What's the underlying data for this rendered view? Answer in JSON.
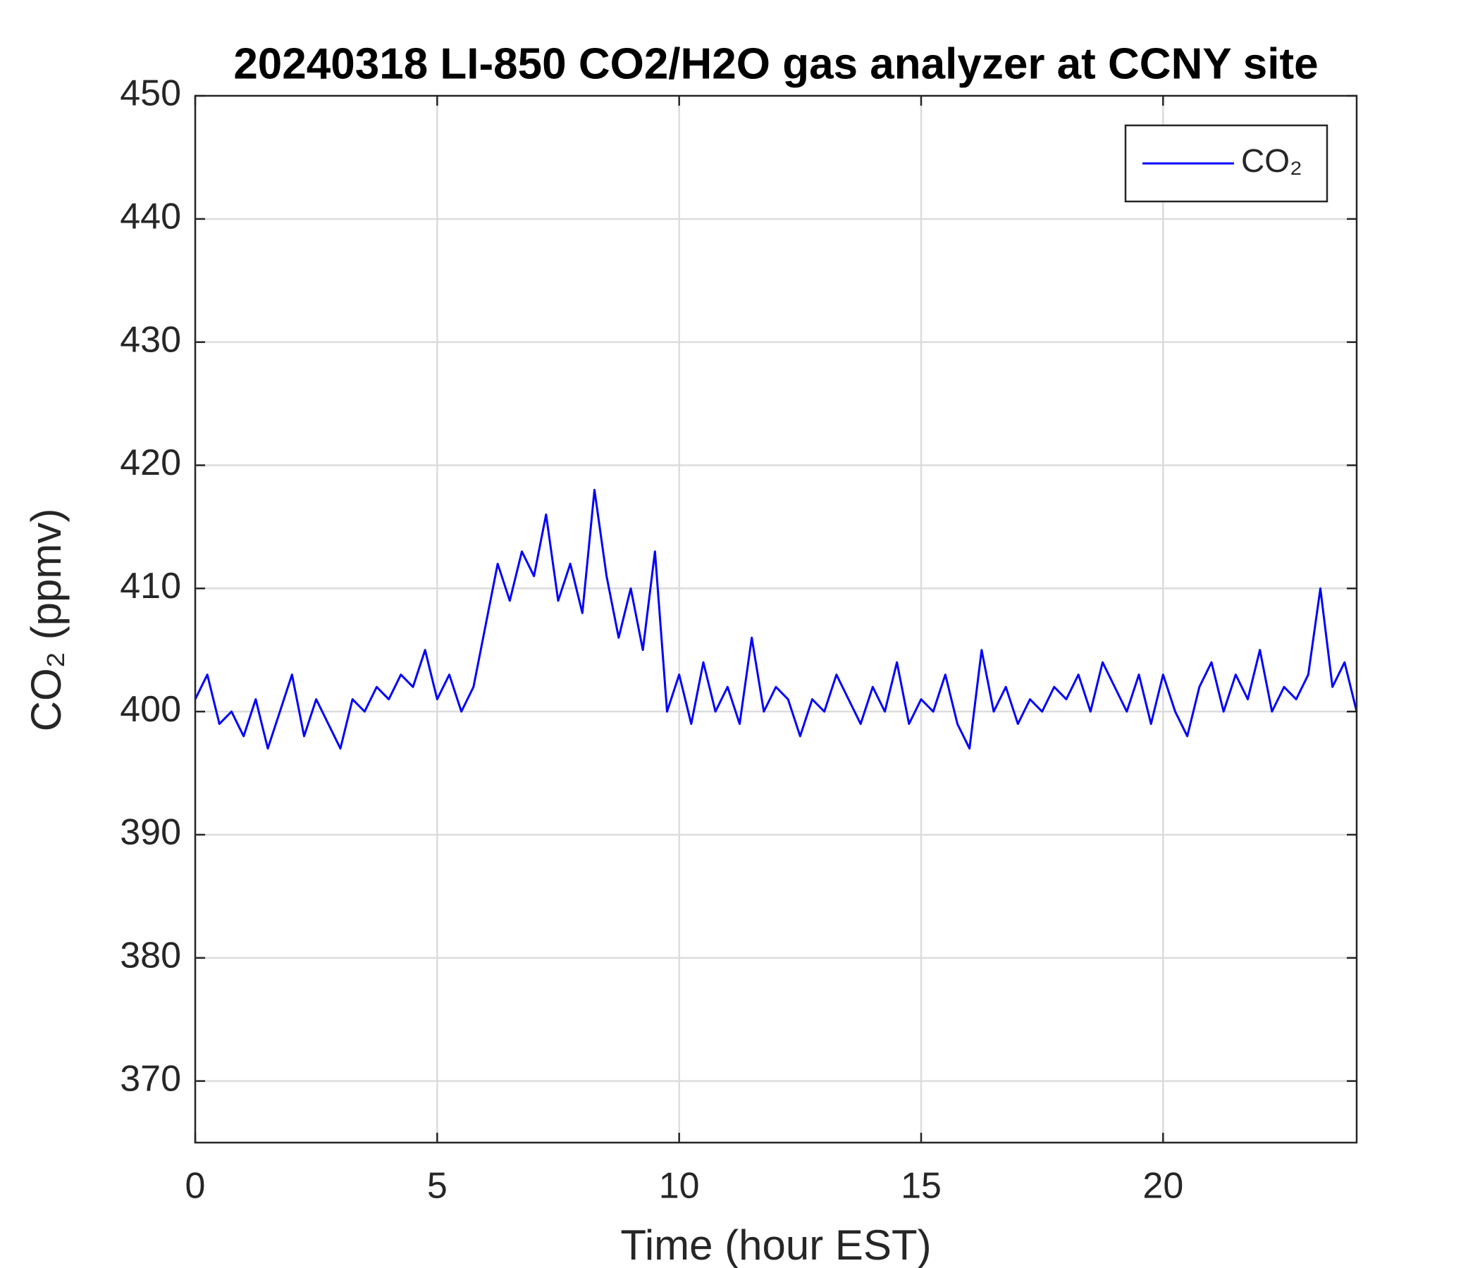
{
  "chart_data": {
    "type": "line",
    "title": "20240318 LI-850 CO2/H2O gas analyzer at CCNY site",
    "x_label": "Time (hour EST)",
    "y_label": "CO₂ (ppmv)",
    "xlim": [
      0,
      24
    ],
    "xticks": [
      0,
      5,
      10,
      15,
      20
    ],
    "ylim": [
      365,
      450
    ],
    "yticks": [
      370,
      380,
      390,
      400,
      410,
      420,
      430,
      440,
      450
    ],
    "grid": true,
    "legend": "upper right",
    "x": [
      0,
      0.25,
      0.5,
      0.75,
      1,
      1.25,
      1.5,
      1.75,
      2,
      2.25,
      2.5,
      2.75,
      3,
      3.25,
      3.5,
      3.75,
      4,
      4.25,
      4.5,
      4.75,
      5,
      5.25,
      5.5,
      5.75,
      6,
      6.25,
      6.5,
      6.75,
      7,
      7.25,
      7.5,
      7.75,
      8,
      8.25,
      8.5,
      8.75,
      9,
      9.25,
      9.5,
      9.75,
      10,
      10.25,
      10.5,
      10.75,
      11,
      11.25,
      11.5,
      11.75,
      12,
      12.25,
      12.5,
      12.75,
      13,
      13.25,
      13.5,
      13.75,
      14,
      14.25,
      14.5,
      14.75,
      15,
      15.25,
      15.5,
      15.75,
      16,
      16.25,
      16.5,
      16.75,
      17,
      17.25,
      17.5,
      17.75,
      18,
      18.25,
      18.5,
      18.75,
      19,
      19.25,
      19.5,
      19.75,
      20,
      20.25,
      20.5,
      20.75,
      21,
      21.25,
      21.5,
      21.75,
      22,
      22.25,
      22.5,
      22.75,
      23,
      23.25,
      23.5,
      23.75,
      24
    ],
    "series": [
      {
        "name": "CO₂",
        "color": "#0000ff",
        "values": [
          401,
          403,
          399,
          400,
          398,
          401,
          397,
          400,
          403,
          398,
          401,
          399,
          397,
          401,
          400,
          402,
          401,
          403,
          402,
          405,
          401,
          403,
          400,
          402,
          407,
          412,
          409,
          413,
          411,
          416,
          409,
          412,
          408,
          418,
          411,
          406,
          410,
          405,
          413,
          400,
          403,
          399,
          404,
          400,
          402,
          399,
          406,
          400,
          402,
          401,
          398,
          401,
          400,
          403,
          401,
          399,
          402,
          400,
          404,
          399,
          401,
          400,
          403,
          399,
          397,
          405,
          400,
          402,
          399,
          401,
          400,
          402,
          401,
          403,
          400,
          404,
          402,
          400,
          403,
          399,
          403,
          400,
          398,
          402,
          404,
          400,
          403,
          401,
          405,
          400,
          402,
          401,
          403,
          410,
          402,
          404,
          400
        ]
      }
    ]
  }
}
